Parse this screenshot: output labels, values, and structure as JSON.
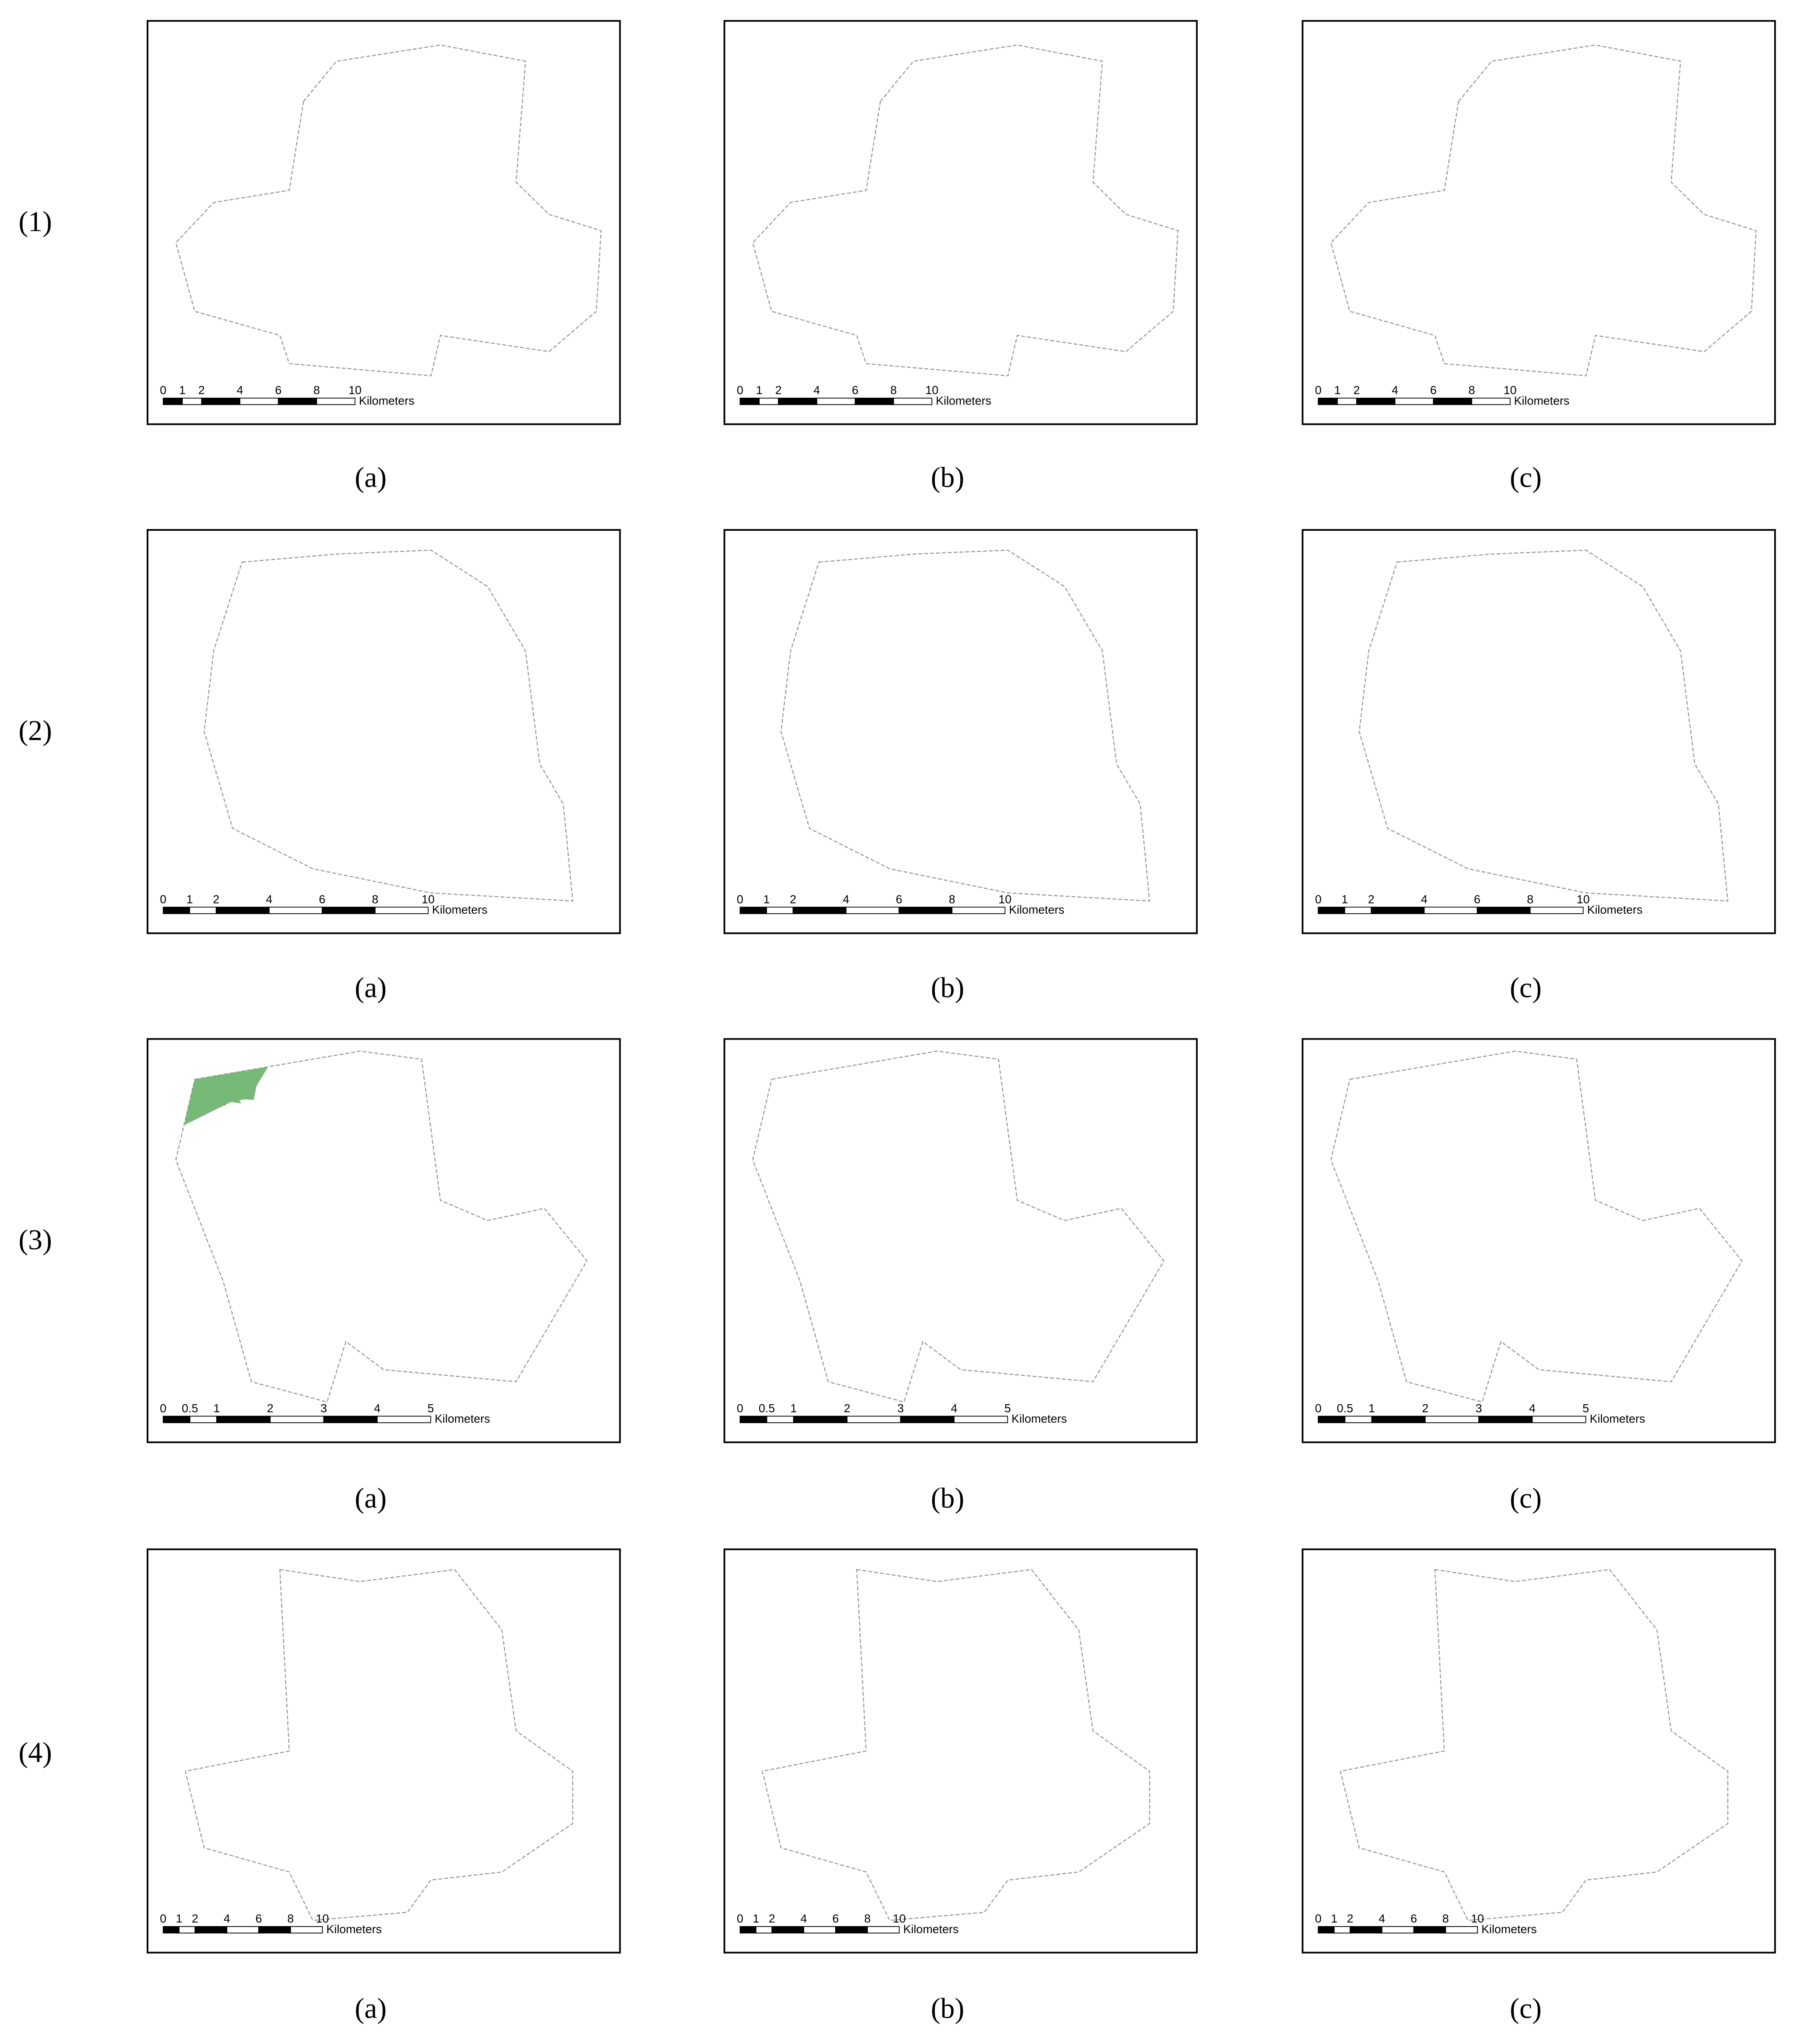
{
  "rows": [
    {
      "label": "(1)",
      "panels": [
        {
          "caption": "(a)",
          "scale_ticks": [
            0,
            1,
            2,
            4,
            6,
            8,
            10
          ],
          "scale_unit": "Kilometers"
        },
        {
          "caption": "(b)",
          "scale_ticks": [
            0,
            1,
            2,
            4,
            6,
            8,
            10
          ],
          "scale_unit": "Kilometers"
        },
        {
          "caption": "(c)",
          "scale_ticks": [
            0,
            1,
            2,
            4,
            6,
            8,
            10
          ],
          "scale_unit": "Kilometers"
        }
      ]
    },
    {
      "label": "(2)",
      "panels": [
        {
          "caption": "(a)",
          "scale_ticks": [
            0,
            1,
            2,
            4,
            6,
            8,
            10
          ],
          "scale_unit": "Kilometers"
        },
        {
          "caption": "(b)",
          "scale_ticks": [
            0,
            1,
            2,
            4,
            6,
            8,
            10
          ],
          "scale_unit": "Kilometers"
        },
        {
          "caption": "(c)",
          "scale_ticks": [
            0,
            1,
            2,
            4,
            6,
            8,
            10
          ],
          "scale_unit": "Kilometers"
        }
      ]
    },
    {
      "label": "(3)",
      "panels": [
        {
          "caption": "(a)",
          "scale_ticks": [
            0,
            0.5,
            1,
            2,
            3,
            4,
            5
          ],
          "scale_unit": "Kilometers"
        },
        {
          "caption": "(b)",
          "scale_ticks": [
            0,
            0.5,
            1,
            2,
            3,
            4,
            5
          ],
          "scale_unit": "Kilometers"
        },
        {
          "caption": "(c)",
          "scale_ticks": [
            0,
            0.5,
            1,
            2,
            3,
            4,
            5
          ],
          "scale_unit": "Kilometers"
        }
      ]
    },
    {
      "label": "(4)",
      "panels": [
        {
          "caption": "(a)",
          "scale_ticks": [
            0,
            1,
            2,
            4,
            6,
            8,
            10
          ],
          "scale_unit": "Kilometers"
        },
        {
          "caption": "(b)",
          "scale_ticks": [
            0,
            1,
            2,
            4,
            6,
            8,
            10
          ],
          "scale_unit": "Kilometers"
        },
        {
          "caption": "(c)",
          "scale_ticks": [
            0,
            1,
            2,
            4,
            6,
            8,
            10
          ],
          "scale_unit": "Kilometers"
        }
      ]
    }
  ]
}
